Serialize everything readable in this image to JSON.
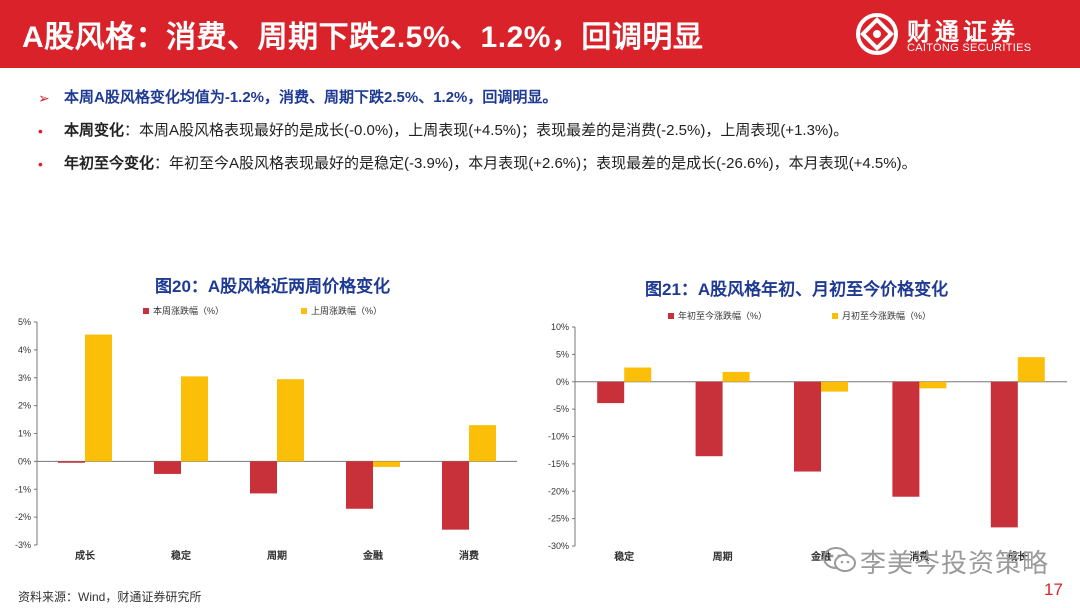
{
  "header": {
    "title": "A股风格：消费、周期下跌2.5%、1.2%，回调明显",
    "logo_cn": "财通证券",
    "logo_en": "CAITONG SECURITIES"
  },
  "points": {
    "headline_marker": "➢",
    "headline": "本周A股风格变化均值为-1.2%，消费、周期下跌2.5%、1.2%，回调明显。",
    "bullet_marker": "•",
    "weekly_key": "本周变化",
    "weekly_text": "：本周A股风格表现最好的是成长(-0.0%)，上周表现(+4.5%)；表现最差的是消费(-2.5%)，上周表现(+1.3%)。",
    "ytd_key": "年初至今变化",
    "ytd_text": "：年初至今A股风格表现最好的是稳定(-3.9%)，本月表现(+2.6%)；表现最差的是成长(-26.6%)，本月表现(+4.5%)。"
  },
  "chart_data": [
    {
      "type": "bar",
      "title": "图20：A股风格近两周价格变化",
      "categories": [
        "成长",
        "稳定",
        "周期",
        "金融",
        "消费"
      ],
      "series": [
        {
          "name": "本周涨跌幅（%）",
          "color": "#c8303a",
          "values": [
            -0.05,
            -0.45,
            -1.15,
            -1.7,
            -2.45
          ]
        },
        {
          "name": "上周涨跌幅（%）",
          "color": "#fbbf0a",
          "values": [
            4.55,
            3.05,
            2.95,
            -0.2,
            1.3
          ]
        }
      ],
      "ylim": [
        -3,
        5
      ],
      "yticks": [
        -3,
        -2,
        -1,
        0,
        1,
        2,
        3,
        4,
        5
      ],
      "ytick_labels": [
        "-3%",
        "-2%",
        "-1%",
        "0%",
        "1%",
        "2%",
        "3%",
        "4%",
        "5%"
      ],
      "legend": "top",
      "grid": false
    },
    {
      "type": "bar",
      "title": "图21：A股风格年初、月初至今价格变化",
      "categories": [
        "稳定",
        "周期",
        "金融",
        "消费",
        "成长"
      ],
      "series": [
        {
          "name": "年初至今涨跌幅（%）",
          "color": "#c8303a",
          "values": [
            -3.9,
            -13.6,
            -16.4,
            -21.0,
            -26.6
          ]
        },
        {
          "name": "月初至今涨跌幅（%）",
          "color": "#fbbf0a",
          "values": [
            2.6,
            1.8,
            -1.8,
            -1.2,
            4.5
          ]
        }
      ],
      "ylim": [
        -30,
        10
      ],
      "yticks": [
        -30,
        -25,
        -20,
        -15,
        -10,
        -5,
        0,
        5,
        10
      ],
      "ytick_labels": [
        "-30%",
        "-25%",
        "-20%",
        "-15%",
        "-10%",
        "-5%",
        "0%",
        "5%",
        "10%"
      ],
      "legend": "top",
      "grid": false
    }
  ],
  "footer": {
    "source": "资料来源：Wind，财通证券研究所",
    "watermark": "李美岑投资策略",
    "page": "17"
  },
  "colors": {
    "brand_red": "#d9222a",
    "title_blue": "#1f3a93"
  }
}
